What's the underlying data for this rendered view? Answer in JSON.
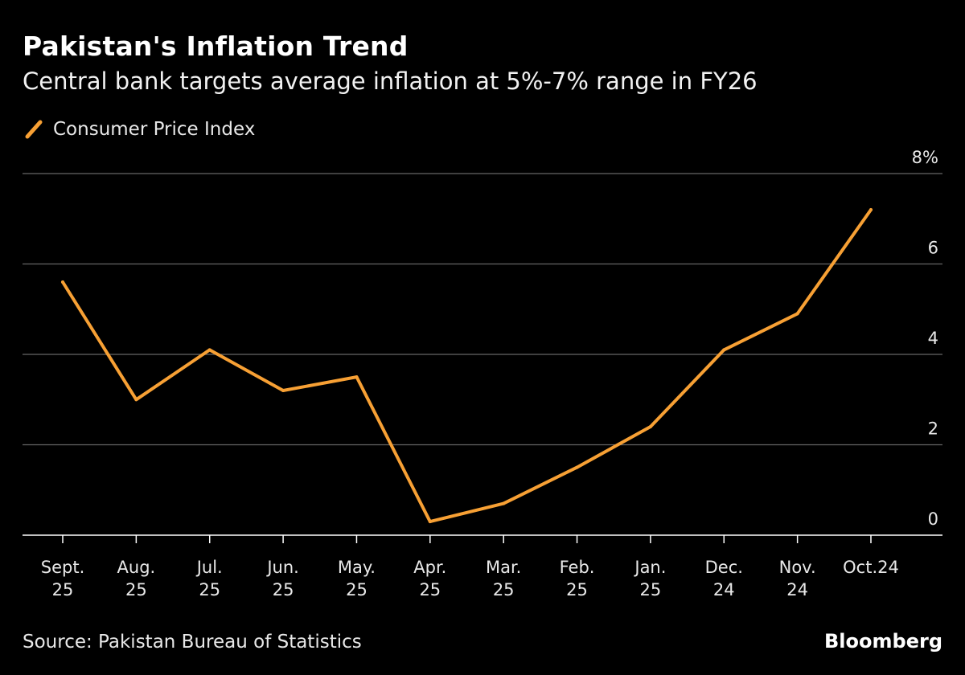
{
  "header": {
    "title": "Pakistan's Inflation Trend",
    "subtitle": "Central bank targets average inflation at 5%-7% range in FY26"
  },
  "legend": {
    "label": "Consumer Price Index",
    "color": "#f7a034"
  },
  "footer": {
    "source": "Source: Pakistan Bureau of Statistics",
    "brand": "Bloomberg"
  },
  "chart_data": {
    "type": "line",
    "title": "Pakistan's Inflation Trend",
    "subtitle": "Central bank targets average inflation at 5%-7% range in FY26",
    "xlabel": "",
    "ylabel": "",
    "ylim": [
      0,
      8
    ],
    "yticks": [
      "0",
      "2",
      "4",
      "6",
      "8%"
    ],
    "grid": true,
    "legend_position": "top-left",
    "categories": [
      [
        "Sept.",
        "25"
      ],
      [
        "Aug.",
        "25"
      ],
      [
        "Jul.",
        "25"
      ],
      [
        "Jun.",
        "25"
      ],
      [
        "May.",
        "25"
      ],
      [
        "Apr.",
        "25"
      ],
      [
        "Mar.",
        "25"
      ],
      [
        "Feb.",
        "25"
      ],
      [
        "Jan.",
        "25"
      ],
      [
        "Dec.",
        "24"
      ],
      [
        "Nov.",
        "24"
      ],
      [
        "Oct.24"
      ]
    ],
    "series": [
      {
        "name": "Consumer Price Index",
        "values": [
          5.6,
          3.0,
          4.1,
          3.2,
          3.5,
          0.3,
          0.7,
          1.5,
          2.4,
          4.1,
          4.9,
          7.2
        ]
      }
    ]
  }
}
